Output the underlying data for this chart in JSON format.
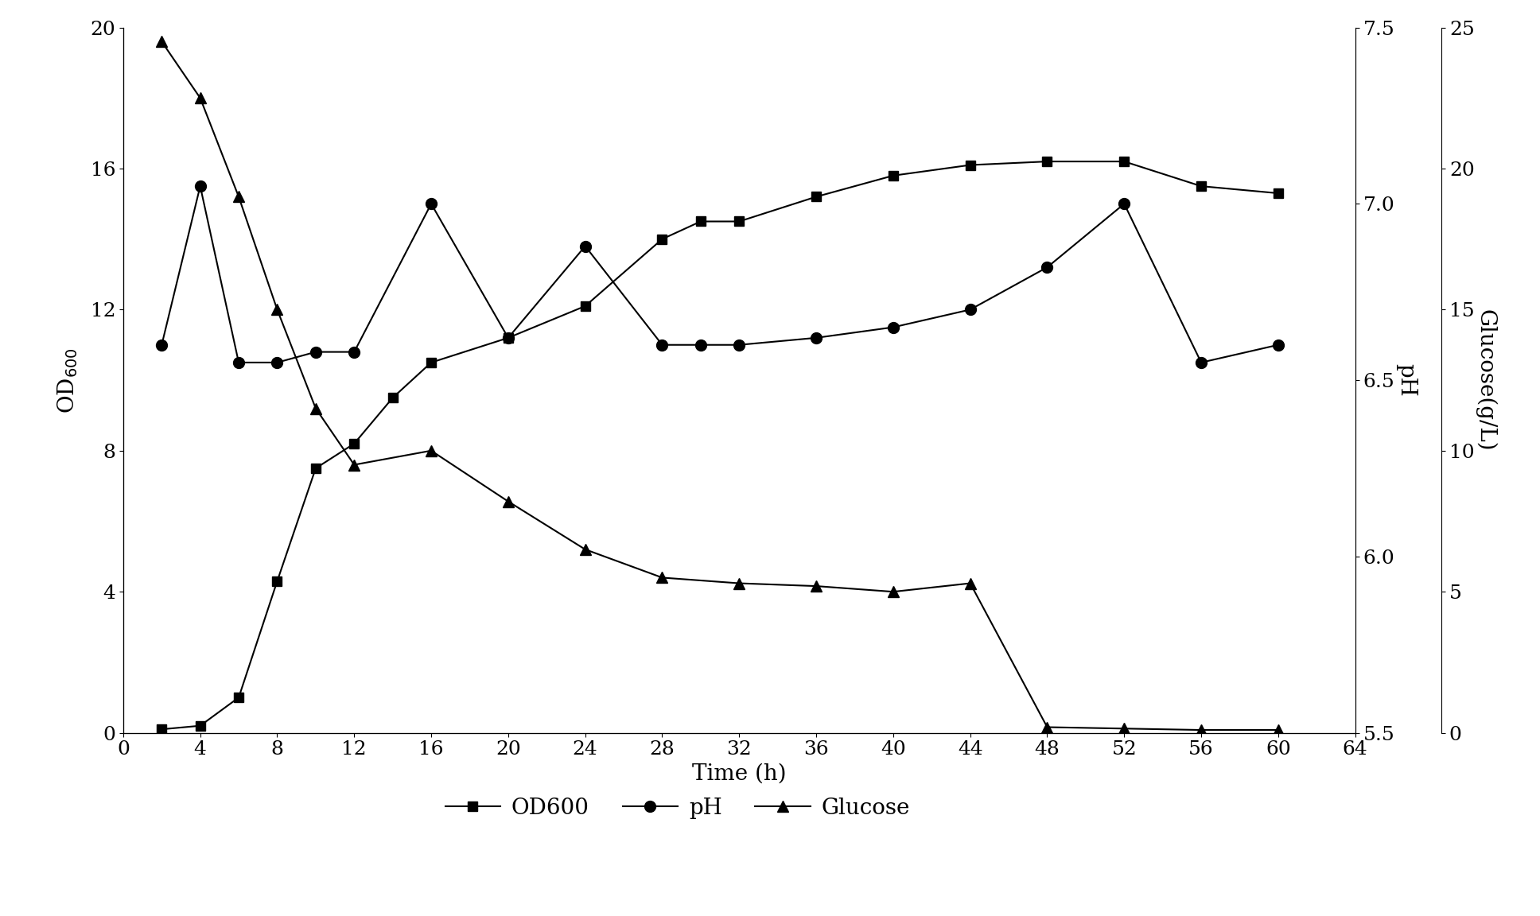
{
  "time_od": [
    2,
    4,
    6,
    8,
    10,
    12,
    14,
    16,
    20,
    24,
    28,
    30,
    32,
    36,
    40,
    44,
    48,
    52,
    56,
    60
  ],
  "od600": [
    0.1,
    0.2,
    1.0,
    4.3,
    7.5,
    8.2,
    9.5,
    10.5,
    11.2,
    12.1,
    14.0,
    14.5,
    14.5,
    15.2,
    15.8,
    16.1,
    16.2,
    16.2,
    15.5,
    15.3
  ],
  "time_ph": [
    2,
    4,
    6,
    8,
    10,
    12,
    16,
    20,
    24,
    28,
    30,
    32,
    36,
    40,
    44,
    48,
    52,
    56,
    60
  ],
  "ph": [
    6.6,
    7.05,
    6.55,
    6.55,
    6.58,
    6.58,
    7.0,
    6.62,
    6.88,
    6.6,
    6.6,
    6.6,
    6.62,
    6.65,
    6.7,
    6.82,
    7.0,
    6.55,
    6.6
  ],
  "time_glc": [
    2,
    4,
    6,
    8,
    10,
    12,
    16,
    20,
    24,
    28,
    32,
    36,
    40,
    44,
    48,
    52,
    56,
    60
  ],
  "glucose": [
    24.5,
    22.5,
    19.0,
    15.0,
    11.5,
    9.5,
    10.0,
    8.2,
    6.5,
    5.5,
    5.3,
    5.2,
    5.0,
    5.3,
    0.2,
    0.15,
    0.1,
    0.1
  ],
  "od_ylim": [
    0,
    20
  ],
  "od_yticks": [
    0,
    4,
    8,
    12,
    16,
    20
  ],
  "ph_ylim": [
    5.5,
    7.5
  ],
  "ph_yticks": [
    5.5,
    6.0,
    6.5,
    7.0,
    7.5
  ],
  "glc_ylim": [
    0,
    25
  ],
  "glc_yticks": [
    0,
    5,
    10,
    15,
    20,
    25
  ],
  "xlim": [
    0,
    64
  ],
  "xticks": [
    0,
    4,
    8,
    12,
    16,
    20,
    24,
    28,
    32,
    36,
    40,
    44,
    48,
    52,
    56,
    60,
    64
  ],
  "xlabel": "Time (h)",
  "ylabel_left": "OD$_{600}$",
  "ylabel_mid": "pH",
  "ylabel_right": "Glucose(g/L)",
  "legend_labels": [
    "OD600",
    "pH",
    "Glucose"
  ],
  "line_color": "black",
  "bg_color": "white",
  "fontsize": 20,
  "tick_fontsize": 18
}
